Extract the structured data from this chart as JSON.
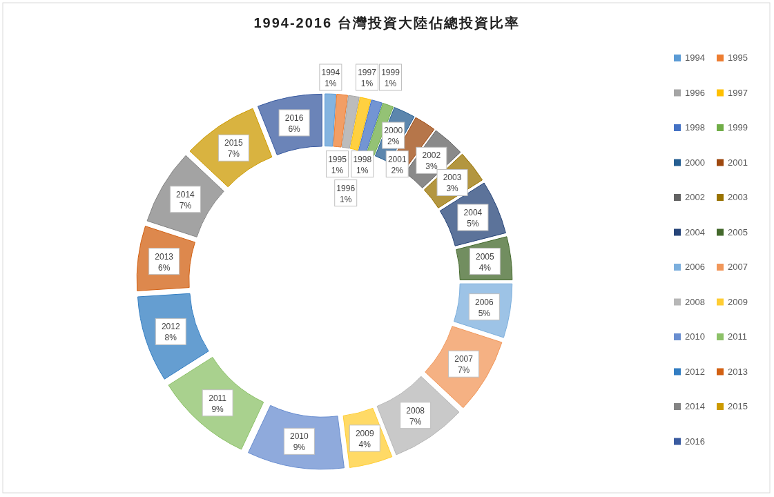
{
  "chart_data": {
    "type": "donut",
    "title": "1994-2016 台灣投資大陸佔總投資比率",
    "categories": [
      "1994",
      "1995",
      "1996",
      "1997",
      "1998",
      "1999",
      "2000",
      "2001",
      "2002",
      "2003",
      "2004",
      "2005",
      "2006",
      "2007",
      "2008",
      "2009",
      "2010",
      "2011",
      "2012",
      "2013",
      "2014",
      "2015",
      "2016"
    ],
    "values": [
      1,
      1,
      1,
      1,
      1,
      1,
      2,
      2,
      3,
      3,
      5,
      4,
      5,
      7,
      7,
      4,
      9,
      9,
      8,
      6,
      7,
      7,
      6
    ],
    "value_labels": [
      "1%",
      "1%",
      "1%",
      "1%",
      "1%",
      "1%",
      "2%",
      "2%",
      "3%",
      "3%",
      "5%",
      "4%",
      "5%",
      "7%",
      "7%",
      "4%",
      "9%",
      "9%",
      "8%",
      "6%",
      "7%",
      "7%",
      "6%"
    ],
    "colors": [
      "#5b9bd5",
      "#ed7d31",
      "#a5a5a5",
      "#ffc000",
      "#4472c4",
      "#70ad47",
      "#255e91",
      "#9e480e",
      "#636363",
      "#997300",
      "#264478",
      "#43682b",
      "#7cafdd",
      "#f1975a",
      "#b7b7b7",
      "#ffcd33",
      "#698ed0",
      "#8cc168",
      "#327dc2",
      "#d26012",
      "#848484",
      "#cc9a00",
      "#3a5ba0"
    ],
    "legend": "right"
  }
}
